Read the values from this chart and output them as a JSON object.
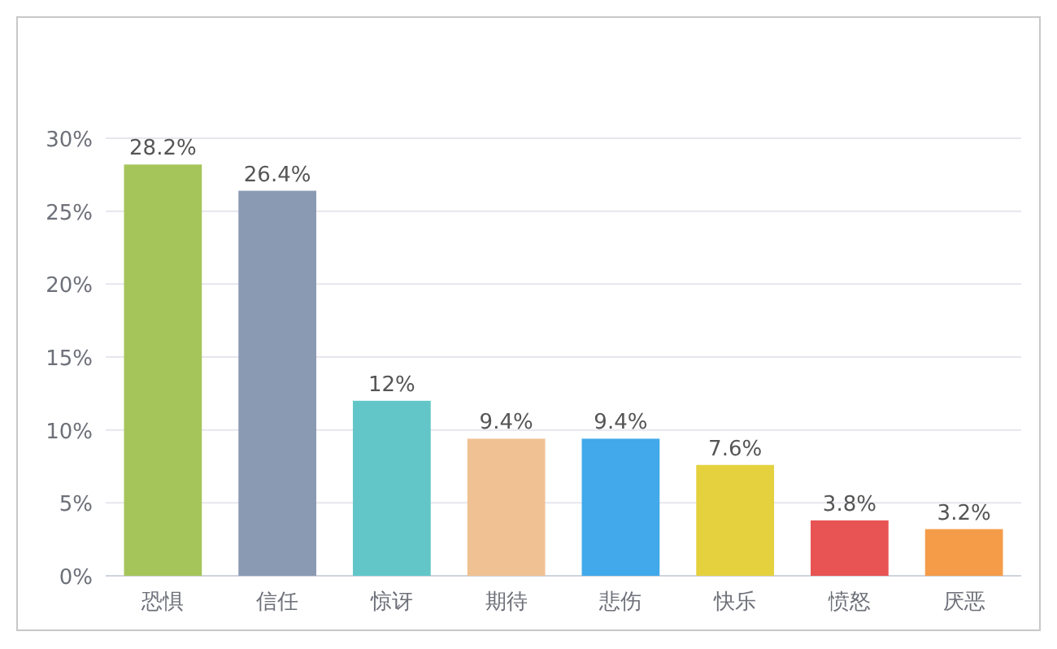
{
  "chart_data": {
    "type": "bar",
    "categories": [
      "恐惧",
      "信任",
      "惊讶",
      "期待",
      "悲伤",
      "快乐",
      "愤怒",
      "厌恶"
    ],
    "values": [
      28.2,
      26.4,
      12,
      9.4,
      9.4,
      7.6,
      3.8,
      3.2
    ],
    "colors": [
      "#a5c55a",
      "#8b9ab3",
      "#62c6c9",
      "#f0c192",
      "#42a9ea",
      "#e4d13d",
      "#e85353",
      "#f59c49"
    ],
    "value_labels": [
      "28.2%",
      "26.4%",
      "12%",
      "9.4%",
      "9.4%",
      "7.6%",
      "3.8%",
      "3.2%"
    ],
    "ylim": [
      0,
      30
    ],
    "yticks": [
      {
        "value": 0,
        "label": "0%"
      },
      {
        "value": 5,
        "label": "5%"
      },
      {
        "value": 10,
        "label": "10%"
      },
      {
        "value": 15,
        "label": "15%"
      },
      {
        "value": 20,
        "label": "20%"
      },
      {
        "value": 25,
        "label": "25%"
      },
      {
        "value": 30,
        "label": "30%"
      }
    ],
    "grid": "y"
  }
}
